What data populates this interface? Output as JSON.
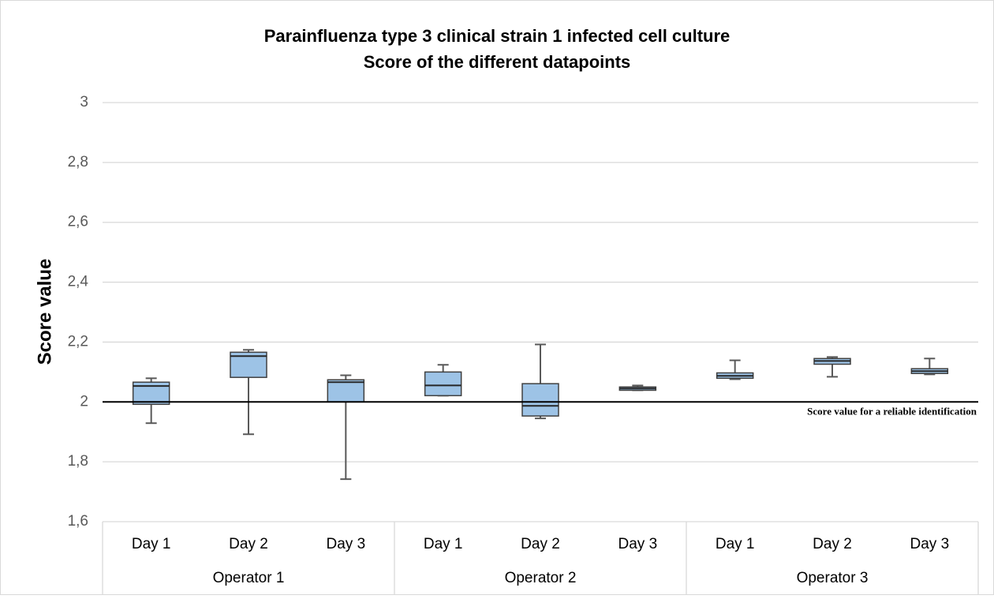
{
  "chart_data": {
    "type": "box",
    "title": [
      "Parainfluenza type 3 clinical strain 1 infected cell culture",
      "Score of the different datapoints"
    ],
    "y_label": "Score value",
    "categories": [
      "Day 1",
      "Day 2",
      "Day 3",
      "Day 1",
      "Day 2",
      "Day 3",
      "Day 1",
      "Day 2",
      "Day 3"
    ],
    "groups": [
      "Operator 1",
      "Operator 2",
      "Operator 3"
    ],
    "series": [
      {
        "color": "#9dc3e6",
        "min": [
          1.929,
          1.892,
          1.742,
          2.021,
          1.945,
          2.039,
          2.076,
          2.084,
          2.092
        ],
        "q1": [
          1.992,
          2.082,
          2.0,
          2.021,
          1.953,
          2.039,
          2.079,
          2.126,
          2.095
        ],
        "median": [
          2.053,
          2.153,
          2.066,
          2.055,
          1.987,
          2.045,
          2.087,
          2.137,
          2.103
        ],
        "q3": [
          2.066,
          2.166,
          2.074,
          2.1,
          2.061,
          2.05,
          2.097,
          2.145,
          2.111
        ],
        "max": [
          2.079,
          2.174,
          2.089,
          2.124,
          2.192,
          2.055,
          2.139,
          2.15,
          2.145
        ]
      }
    ],
    "reference_line": {
      "value": 2,
      "label": "Score value for a reliable identification"
    },
    "ylim": [
      1.6,
      3
    ],
    "yticks": [
      {
        "value": 1.6,
        "label": "1,6"
      },
      {
        "value": 1.8,
        "label": "1,8"
      },
      2,
      {
        "value": 2.2,
        "label": "2,2"
      },
      {
        "value": 2.4,
        "label": "2,4"
      },
      {
        "value": 2.6,
        "label": "2,6"
      },
      {
        "value": 2.8,
        "label": "2,8"
      },
      3
    ],
    "grid": true
  }
}
